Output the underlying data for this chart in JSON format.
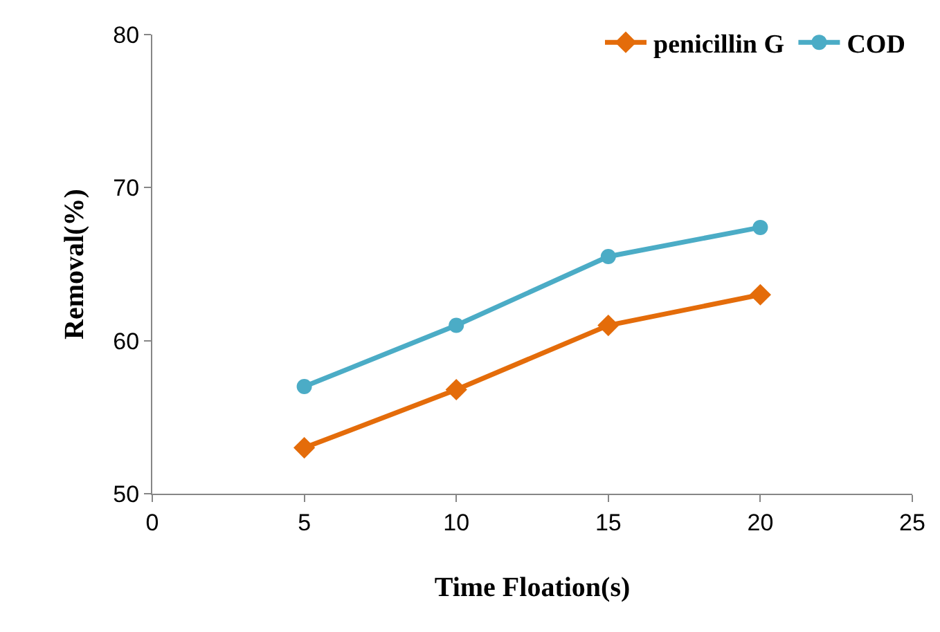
{
  "chart_data": {
    "type": "line",
    "xlabel": "Time Floation(s)",
    "ylabel": "Removal(%)",
    "x": [
      5,
      10,
      15,
      20
    ],
    "series": [
      {
        "name": "penicillin G",
        "color": "#e46c0a",
        "marker": "diamond",
        "values": [
          53.0,
          56.8,
          61.0,
          63.0
        ]
      },
      {
        "name": "COD",
        "color": "#4bacc6",
        "marker": "circle",
        "values": [
          57.0,
          61.0,
          65.5,
          67.4
        ]
      }
    ],
    "xlim": [
      0,
      25
    ],
    "xticks": [
      0,
      5,
      10,
      15,
      20,
      25
    ],
    "ylim": [
      50,
      80
    ],
    "yticks": [
      50,
      60,
      70,
      80
    ],
    "legend": "top right",
    "line_style": "solid"
  }
}
